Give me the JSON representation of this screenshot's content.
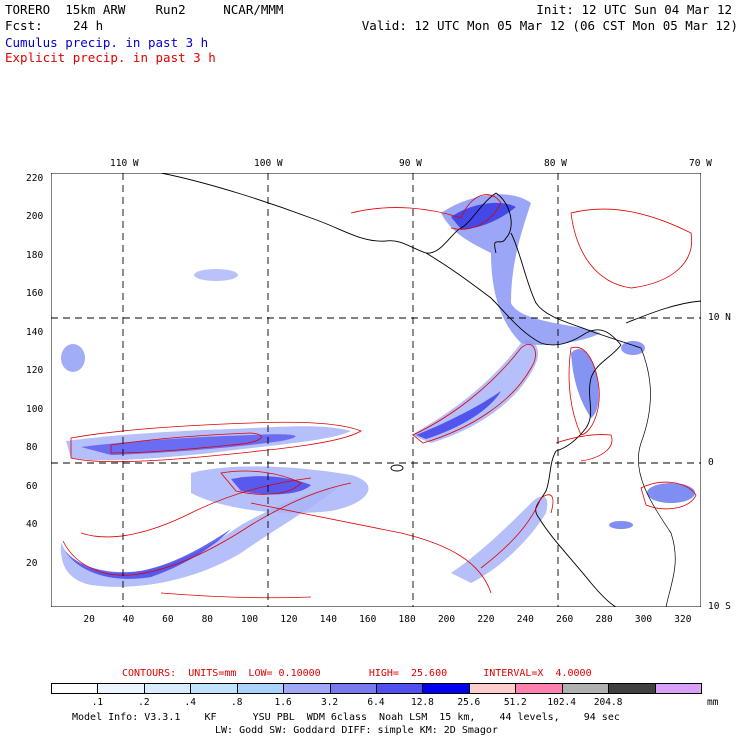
{
  "header": {
    "model_line": "TORERO  15km ARW    Run2     NCAR/MMM",
    "init": "Init: 12 UTC Sun 04 Mar 12",
    "fcst_label": "Fcst:",
    "fcst_value": "24 h",
    "valid": "Valid: 12 UTC Mon 05 Mar 12 (06 CST Mon 05 Mar 12)",
    "cumulus_label": "Cumulus precip. in past 3 h",
    "explicit_label": "Explicit precip. in past 3 h"
  },
  "colors": {
    "cumulus_text": "#0000cc",
    "explicit_text": "#e00000",
    "contour": "#e00000",
    "grid": "#000000"
  },
  "map": {
    "x_axis_ticks": [
      "20",
      "40",
      "60",
      "80",
      "100",
      "120",
      "140",
      "160",
      "180",
      "200",
      "220",
      "240",
      "260",
      "280",
      "300",
      "320"
    ],
    "y_axis_ticks": [
      "20",
      "40",
      "60",
      "80",
      "100",
      "120",
      "140",
      "160",
      "180",
      "200",
      "220"
    ],
    "longitude_labels": [
      "110 W",
      "100 W",
      "90 W",
      "80 W",
      "70 W"
    ],
    "latitude_labels": [
      "10 N",
      "0",
      "10 S"
    ]
  },
  "footer": {
    "contours_line": "CONTOURS:  UNITS=mm  LOW= 0.10000        HIGH=  25.600      INTERVAL=X  4.0000",
    "colorbar": {
      "colors": [
        "#ffffff",
        "#ecf4ff",
        "#d8ecff",
        "#c0e4ff",
        "#a8d4ff",
        "#a0a8f8",
        "#7878f0",
        "#5050f0",
        "#0000f0",
        "#ffcccc",
        "#ff80b0",
        "#b0b0b0",
        "#404040",
        "#d8a0f8"
      ],
      "labels": [
        ".1",
        ".2",
        ".4",
        ".8",
        "1.6",
        "3.2",
        "6.4",
        "12.8",
        "25.6",
        "51.2",
        "102.4",
        "204.8"
      ],
      "units": "mm"
    },
    "model_info_1": "Model Info: V3.3.1    KF      YSU PBL  WDM 6class  Noah LSM  15 km,    44 levels,    94 sec",
    "model_info_2": "LW: Godd SW: Goddard DIFF: simple KM: 2D Smagor"
  }
}
